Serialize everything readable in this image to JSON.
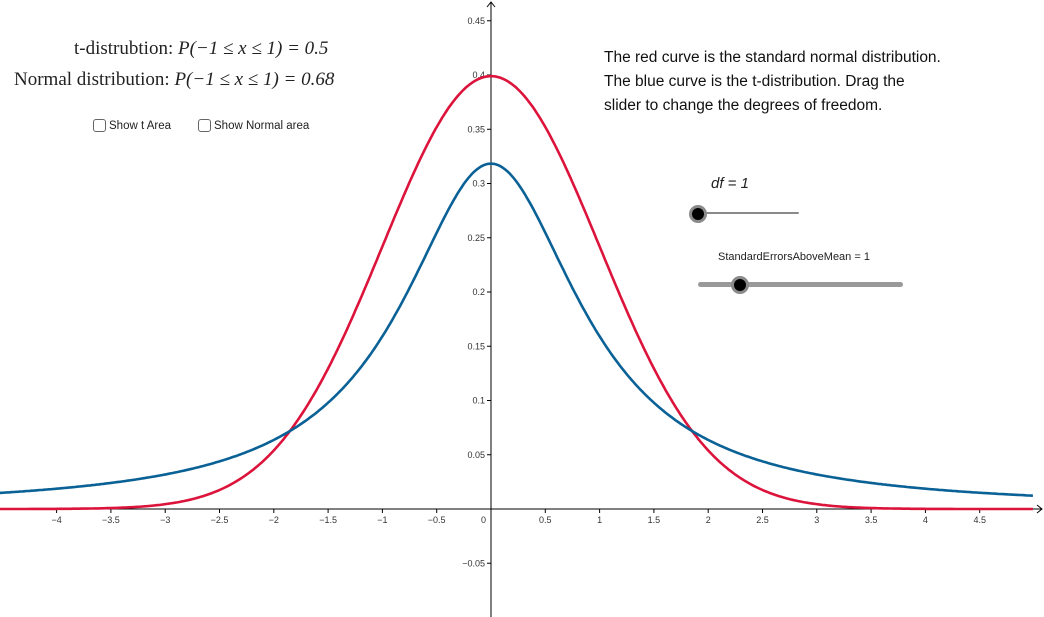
{
  "info": {
    "t_prob_label": "t-distrubtion:",
    "t_prob_expr": "P(−1 ≤ x ≤ 1) = 0.5",
    "normal_prob_label": "Normal distribution:",
    "normal_prob_expr": "P(−1 ≤ x ≤ 1) = 0.68"
  },
  "checkboxes": {
    "show_t_area": {
      "label": "Show t Area",
      "checked": false
    },
    "show_normal_area": {
      "label": "Show Normal area",
      "checked": false
    }
  },
  "description": {
    "line1": "The red curve is the standard normal distribution.",
    "line2": "The blue curve is the t-distribution. Drag the",
    "line3": "slider to change the degrees of freedom."
  },
  "sliders": {
    "df": {
      "label": "df = 1",
      "value": 1
    },
    "se": {
      "label": "StandardErrorsAboveMean = 1",
      "value": 1
    }
  },
  "colors": {
    "normal_curve": "#DC143C",
    "t_curve": "#0A6196",
    "axis": "#000000"
  },
  "chart_data": {
    "type": "line",
    "title": "",
    "xlabel": "",
    "ylabel": "",
    "xlim": [
      -4.5,
      5.0
    ],
    "ylim": [
      -0.095,
      0.47
    ],
    "grid": false,
    "x_ticks": [
      "-4",
      "-3.5",
      "-3",
      "-2.5",
      "-2",
      "-1.5",
      "-1",
      "-0.5",
      "0",
      "0.5",
      "1",
      "1.5",
      "2",
      "2.5",
      "3",
      "3.5",
      "4",
      "4.5"
    ],
    "y_ticks": [
      "-0.05",
      "0.05",
      "0.1",
      "0.15",
      "0.2",
      "0.25",
      "0.3",
      "0.35",
      "0.4",
      "0.45"
    ],
    "x": [
      -4.5,
      -4,
      -3.5,
      -3,
      -2.75,
      -2.5,
      -2.25,
      -2,
      -1.75,
      -1.5,
      -1.25,
      -1,
      -0.75,
      -0.5,
      -0.25,
      0,
      0.25,
      0.5,
      0.75,
      1,
      1.25,
      1.5,
      1.75,
      2,
      2.25,
      2.5,
      2.75,
      3,
      3.5,
      4,
      4.5,
      5
    ],
    "series": [
      {
        "name": "Standard normal distribution",
        "color": "red",
        "values": [
          0.0,
          0.0001,
          0.0009,
          0.0044,
          0.0091,
          0.0175,
          0.0317,
          0.054,
          0.0863,
          0.1295,
          0.1826,
          0.242,
          0.3011,
          0.3521,
          0.3867,
          0.3989,
          0.3867,
          0.3521,
          0.3011,
          0.242,
          0.1826,
          0.1295,
          0.0863,
          0.054,
          0.0317,
          0.0175,
          0.0091,
          0.0044,
          0.0009,
          0.0001,
          0.0,
          0.0
        ]
      },
      {
        "name": "t-distribution (df = 1)",
        "color": "blue",
        "values": [
          0.0149,
          0.0187,
          0.0241,
          0.0318,
          0.0372,
          0.0439,
          0.0524,
          0.0637,
          0.0784,
          0.0979,
          0.1242,
          0.1592,
          0.2037,
          0.2546,
          0.2996,
          0.3183,
          0.2996,
          0.2546,
          0.2037,
          0.1592,
          0.1242,
          0.0979,
          0.0784,
          0.0637,
          0.0524,
          0.0439,
          0.0372,
          0.0318,
          0.0241,
          0.0187,
          0.0149,
          0.0122
        ]
      }
    ]
  }
}
